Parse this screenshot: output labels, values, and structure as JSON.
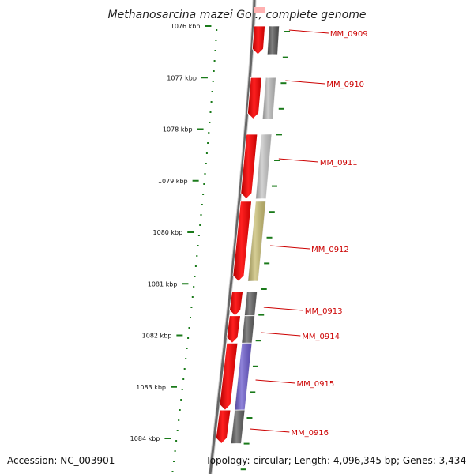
{
  "title": "Methanosarcina mazei Go1, complete genome",
  "footer": {
    "accession": "Accession: NC_003901",
    "topology": "Topology: circular; Length: 4,096,345 bp; Genes: 3,434"
  },
  "colors": {
    "forward_gene": "#ff0000",
    "ruler_tick": "#1a7a1a",
    "label": "#cc0000",
    "backbone": "#666666"
  },
  "ruler": [
    {
      "label": "1076 kbp"
    },
    {
      "label": "1077 kbp"
    },
    {
      "label": "1078 kbp"
    },
    {
      "label": "1079 kbp"
    },
    {
      "label": "1080 kbp"
    },
    {
      "label": "1081 kbp"
    },
    {
      "label": "1082 kbp"
    },
    {
      "label": "1083 kbp"
    },
    {
      "label": "1084 kbp"
    }
  ],
  "genes": [
    {
      "name": "MM_0909",
      "category_color": "#555555"
    },
    {
      "name": "MM_0910",
      "category_color": "#bbbbbb"
    },
    {
      "name": "MM_0911",
      "category_color": "#c4c4c4"
    },
    {
      "name": "MM_0912",
      "category_color": "#c8bd72"
    },
    {
      "name": "MM_0913",
      "category_color": "#5e5e5e"
    },
    {
      "name": "MM_0914",
      "category_color": "#5e5e5e"
    },
    {
      "name": "MM_0915",
      "category_color": "#6a5acd"
    },
    {
      "name": "MM_0916",
      "category_color": "#5e5e5e"
    }
  ]
}
